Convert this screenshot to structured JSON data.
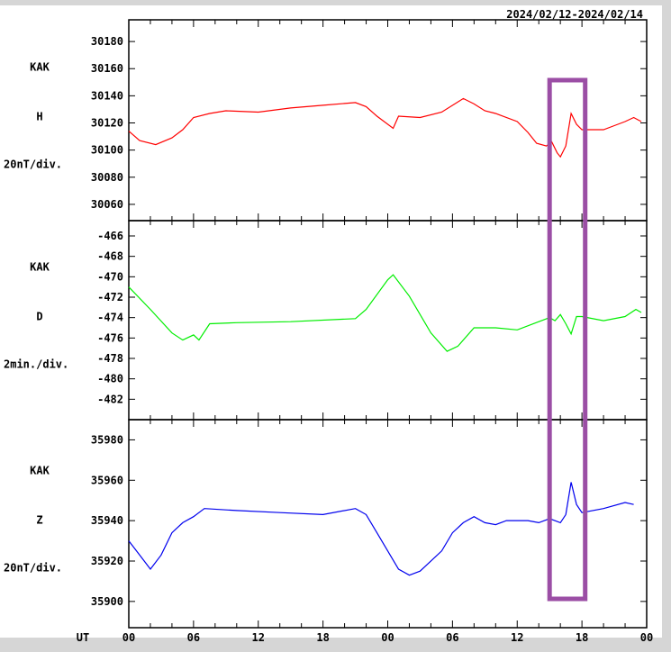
{
  "chart_data": [
    {
      "type": "line",
      "date_range": "2024/02/12-2024/02/14",
      "station": "KAK",
      "component": "H",
      "scale": "20nT/div.",
      "color": "#ff0000",
      "ylim": [
        30048,
        30196
      ],
      "yticks": [
        30060,
        30080,
        30100,
        30120,
        30140,
        30160,
        30180
      ],
      "x_hours": [
        0,
        1,
        2.5,
        4,
        5,
        6,
        7.5,
        9,
        12,
        15,
        18,
        21,
        22,
        23,
        24.5,
        25,
        27,
        29,
        31,
        32,
        33,
        34,
        36,
        37,
        37.8,
        38.7,
        39.2,
        39.7,
        40,
        40.5,
        41,
        41.5,
        42,
        44,
        45,
        46,
        46.8,
        47.5
      ],
      "values": [
        30114,
        30107,
        30104,
        30109,
        30115,
        30124,
        30127,
        30129,
        30128,
        30131,
        30133,
        30135,
        30132,
        30125,
        30116,
        30125,
        30124,
        30128,
        30138,
        30134,
        30129,
        30127,
        30121,
        30113,
        30105,
        30103,
        30106,
        30098,
        30095,
        30103,
        30127,
        30119,
        30115,
        30115,
        30118,
        30121,
        30124,
        30121
      ]
    },
    {
      "type": "line",
      "station": "KAK",
      "component": "D",
      "scale": "2min./div.",
      "color": "#00ee00",
      "ylim": [
        -484,
        -464.5
      ],
      "yticks": [
        -482,
        -480,
        -478,
        -476,
        -474,
        -472,
        -470,
        -468,
        -466
      ],
      "x_hours": [
        0,
        2,
        4,
        5,
        6,
        6.5,
        7.5,
        10,
        15,
        21,
        22,
        24,
        24.5,
        26,
        28,
        29.5,
        30.5,
        32,
        34,
        36,
        38,
        39,
        39.5,
        40,
        40.5,
        41,
        41.5,
        42,
        44,
        46,
        47,
        47.5
      ],
      "values": [
        -471,
        -473.2,
        -475.5,
        -476.2,
        -475.7,
        -476.2,
        -474.6,
        -474.5,
        -474.4,
        -474.1,
        -473.2,
        -470.3,
        -469.8,
        -471.9,
        -475.5,
        -477.3,
        -476.8,
        -475,
        -475,
        -475.2,
        -474.4,
        -474,
        -474.3,
        -473.7,
        -474.6,
        -475.6,
        -473.9,
        -473.9,
        -474.3,
        -473.9,
        -473.2,
        -473.5
      ]
    },
    {
      "type": "line",
      "station": "KAK",
      "component": "Z",
      "scale": "20nT/div.",
      "color": "#0000ee",
      "ylim": [
        35887,
        35990
      ],
      "yticks": [
        35900,
        35920,
        35940,
        35960,
        35980
      ],
      "x_hours": [
        0,
        1,
        2,
        3,
        4,
        5,
        6,
        7,
        10,
        14,
        18,
        21,
        22,
        23,
        24,
        25,
        26,
        27,
        29,
        30,
        31,
        32,
        33,
        34,
        35,
        37,
        38,
        39,
        40,
        40.5,
        41,
        41.5,
        42,
        44,
        46,
        46.8
      ],
      "values": [
        35930,
        35923,
        35916,
        35923,
        35934,
        35939,
        35942,
        35946,
        35945,
        35944,
        35943,
        35946,
        35943,
        35934,
        35925,
        35916,
        35913,
        35915,
        35925,
        35934,
        35939,
        35942,
        35939,
        35938,
        35940,
        35940,
        35939,
        35941,
        35939,
        35943,
        35959,
        35948,
        35944,
        35946,
        35949,
        35948
      ]
    }
  ],
  "x_axis": {
    "label": "UT",
    "ticklabels": [
      "00",
      "06",
      "12",
      "18",
      "00",
      "06",
      "12",
      "18",
      "00"
    ],
    "range_hours": [
      0,
      48
    ]
  },
  "highlight": {
    "color": "#9b4ea5",
    "x_hours": [
      39.0,
      42.3
    ],
    "panels": "all"
  }
}
